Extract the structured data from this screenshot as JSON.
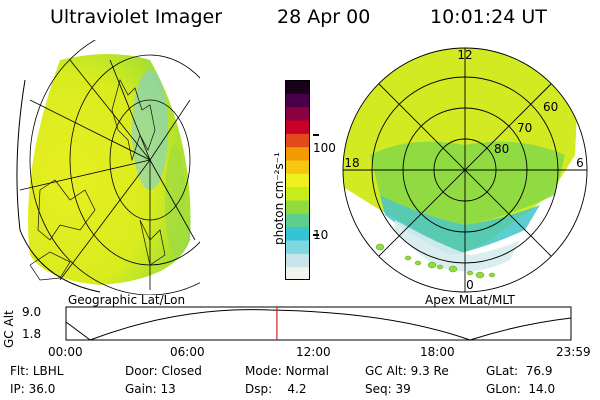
{
  "header": {
    "instrument": "Ultraviolet Imager",
    "date": "28 Apr 00",
    "time": "10:01:24 UT"
  },
  "colorbar": {
    "unit_label": "photon cm⁻²s⁻¹",
    "ticks": [
      "100",
      "10"
    ],
    "colors": [
      "#f2f2ee",
      "#c8e4e8",
      "#7fd8e0",
      "#35c4d2",
      "#5ccf8e",
      "#8fdc3c",
      "#c6ec1a",
      "#eef020",
      "#f7c60e",
      "#f29a00",
      "#e24a1c",
      "#c80028",
      "#8a0040",
      "#4a0048",
      "#180018"
    ]
  },
  "geo_panel": {
    "label": "Geographic Lat/Lon"
  },
  "polar_panel": {
    "label": "Apex MLat/MLT",
    "mlt_labels": {
      "top": "12",
      "left": "18",
      "right": "6",
      "bottom": "0"
    },
    "lat_labels": [
      "60",
      "70",
      "80"
    ]
  },
  "timeline": {
    "ylabel": "GC Alt",
    "yticks": [
      "9.0",
      "1.8"
    ],
    "xticks": [
      "00:00",
      "06:00",
      "12:00",
      "18:00",
      "23:59"
    ],
    "marker_time": "10:01",
    "marker_color": "#cc2222"
  },
  "info": {
    "filter_label": "Flt:",
    "filter": "LBHL",
    "ip_label": "IP:",
    "ip": "36.0",
    "door_label": "Door:",
    "door": "Closed",
    "gain_label": "Gain:",
    "gain": "13",
    "mode_label": "Mode:",
    "mode": "Normal",
    "dsp_label": "Dsp:",
    "dsp": "4.2",
    "gcalt_label": "GC Alt:",
    "gcalt": "9.3 Re",
    "seq_label": "Seq:",
    "seq": "39",
    "glat_label": "GLat:",
    "glat": "76.9",
    "glon_label": "GLon:",
    "glon": "14.0"
  }
}
